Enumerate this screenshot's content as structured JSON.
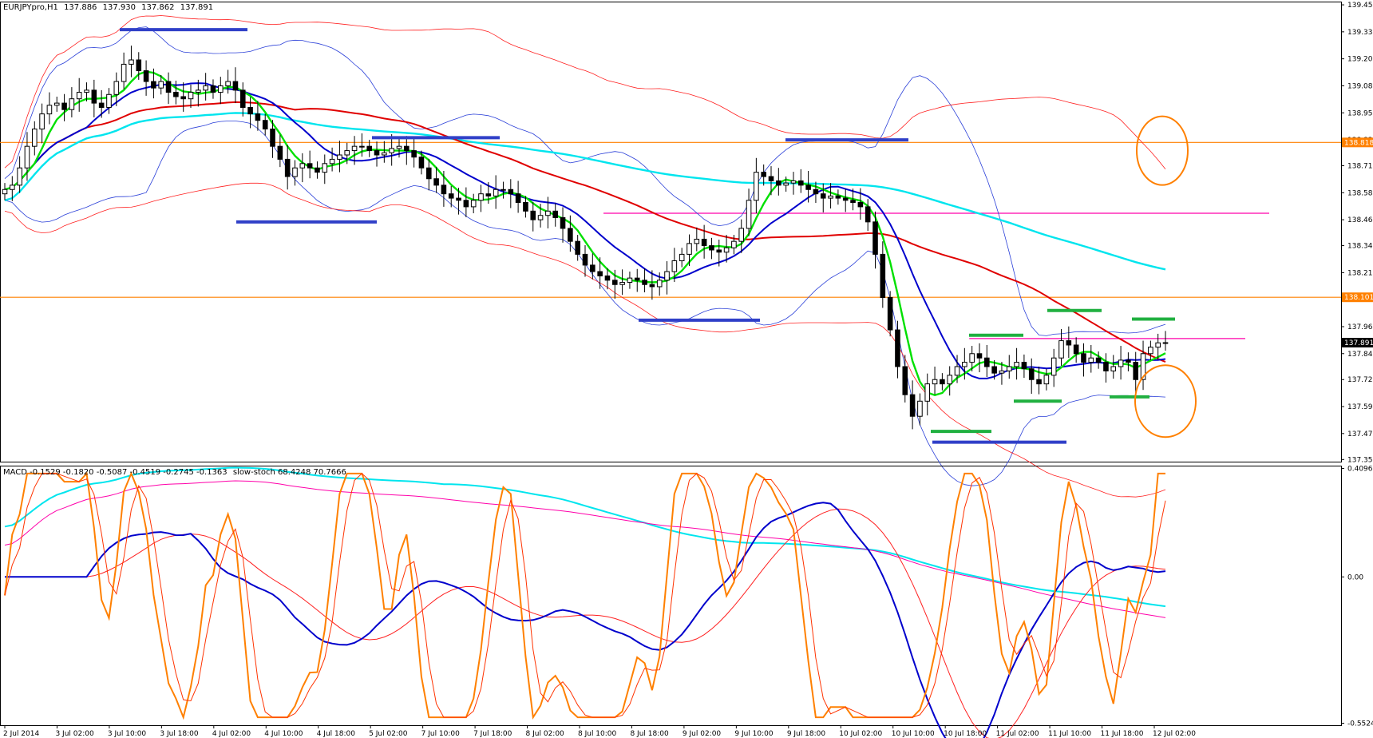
{
  "header": {
    "symbol": "EURJPYpro,H1",
    "open": "137.886",
    "high": "137.930",
    "low": "137.862",
    "close": "137.891"
  },
  "indicator_header": {
    "macd_label": "MACD -0.1529 -0.1820 -0.5087 -0.4519 -0.2745 -0.1363",
    "stoch_label": "slow-stoch 68.4248 70.7666"
  },
  "colors": {
    "background": "#ffffff",
    "bull_candle": "#ffffff",
    "bear_candle": "#000000",
    "green_ma": "#00e000",
    "blue_ma": "#0000cc",
    "red_ma": "#e00000",
    "cyan_ma": "#00e5ee",
    "bands_blue": "#2a3fd8",
    "bands_red": "#ff2020",
    "level_orange": "#ff8000",
    "level_magenta": "#ff00aa",
    "marker_blue": "#3040c8",
    "marker_green": "#20b040",
    "price_tag": "#ff8000",
    "last_price_tag": "#000000"
  },
  "chart_data": [
    {
      "type": "candlestick",
      "title": "EURJPYpro,H1",
      "y_axis_ticks": [
        "139.455",
        "139.330",
        "139.205",
        "139.080",
        "138.955",
        "138.830",
        "138.710",
        "138.585",
        "138.460",
        "138.340",
        "138.215",
        "138.090",
        "137.965",
        "137.840",
        "137.720",
        "137.595",
        "137.470",
        "137.350"
      ],
      "ylim": [
        137.34,
        139.47
      ],
      "x_axis_ticks": [
        "2 Jul 2014",
        "3 Jul 02:00",
        "3 Jul 10:00",
        "3 Jul 18:00",
        "4 Jul 02:00",
        "4 Jul 10:00",
        "4 Jul 18:00",
        "5 Jul 02:00",
        "7 Jul 10:00",
        "7 Jul 18:00",
        "8 Jul 02:00",
        "8 Jul 10:00",
        "8 Jul 18:00",
        "9 Jul 02:00",
        "9 Jul 10:00",
        "9 Jul 18:00",
        "10 Jul 02:00",
        "10 Jul 10:00",
        "10 Jul 18:00",
        "11 Jul 02:00",
        "11 Jul 10:00",
        "11 Jul 18:00",
        "12 Jul 02:00"
      ],
      "price_levels": [
        {
          "price": 138.818,
          "label": "138.818",
          "color": "#ff8000"
        },
        {
          "price": 138.101,
          "label": "138.101",
          "color": "#ff8000"
        }
      ],
      "last_price": {
        "price": 137.891,
        "label": "137.891"
      },
      "candles_close": [
        138.6,
        138.62,
        138.7,
        138.8,
        138.88,
        138.95,
        138.99,
        139.0,
        138.97,
        139.02,
        139.05,
        139.06,
        139.0,
        138.98,
        139.04,
        139.1,
        139.18,
        139.2,
        139.15,
        139.1,
        139.07,
        139.1,
        139.05,
        139.03,
        139.02,
        139.05,
        139.06,
        139.08,
        139.05,
        139.08,
        139.1,
        139.06,
        138.98,
        138.95,
        138.92,
        138.88,
        138.8,
        138.74,
        138.66,
        138.7,
        138.72,
        138.7,
        138.68,
        138.72,
        138.74,
        138.76,
        138.78,
        138.8,
        138.8,
        138.78,
        138.76,
        138.77,
        138.79,
        138.8,
        138.78,
        138.75,
        138.7,
        138.65,
        138.62,
        138.58,
        138.56,
        138.55,
        138.52,
        138.55,
        138.58,
        138.57,
        138.6,
        138.6,
        138.58,
        138.54,
        138.5,
        138.46,
        138.48,
        138.5,
        138.47,
        138.42,
        138.36,
        138.3,
        138.25,
        138.22,
        138.2,
        138.18,
        138.16,
        138.17,
        138.19,
        138.18,
        138.16,
        138.15,
        138.18,
        138.22,
        138.27,
        138.3,
        138.35,
        138.37,
        138.34,
        138.32,
        138.31,
        138.33,
        138.36,
        138.42,
        138.55,
        138.68,
        138.66,
        138.64,
        138.62,
        138.63,
        138.64,
        138.62,
        138.6,
        138.58,
        138.56,
        138.57,
        138.56,
        138.55,
        138.54,
        138.52,
        138.45,
        138.3,
        138.1,
        137.95,
        137.78,
        137.65,
        137.55,
        137.62,
        137.7,
        137.72,
        137.7,
        137.74,
        137.78,
        137.8,
        137.84,
        137.82,
        137.78,
        137.75,
        137.76,
        137.78,
        137.8,
        137.77,
        137.72,
        137.7,
        137.74,
        137.82,
        137.9,
        137.88,
        137.84,
        137.8,
        137.82,
        137.8,
        137.76,
        137.78,
        137.81,
        137.8,
        137.72,
        137.84,
        137.87,
        137.89,
        137.891
      ],
      "horizontal_lines": [
        {
          "y": 138.818,
          "color": "#ff8000"
        },
        {
          "y": 138.101,
          "color": "#ff8000"
        },
        {
          "y": 138.49,
          "color": "#ff00aa",
          "x_from": "8 Jul 10:00"
        },
        {
          "y": 137.91,
          "color": "#ff00aa",
          "x_from": "10 Jul 18:00"
        }
      ]
    },
    {
      "type": "line",
      "title": "MACD / slow-stoch",
      "y_axis_ticks": [
        "0.4096",
        "0.00",
        "-0.5524"
      ],
      "ylim": [
        -0.56,
        0.42
      ]
    }
  ]
}
